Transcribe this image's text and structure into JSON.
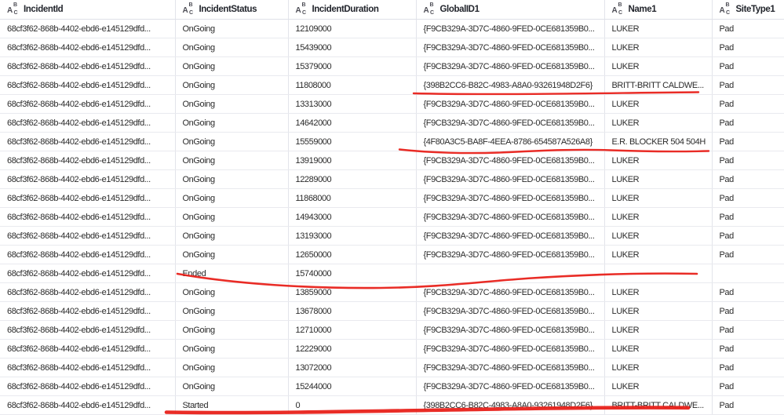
{
  "colors": {
    "annotation_red": "#e8211a",
    "grid_border": "#e2e4ea",
    "header_text": "#22252c",
    "cell_text": "#2b2b2b"
  },
  "icons": {
    "column_type": {
      "name": "text-type-icon",
      "letters": [
        "A",
        "B",
        "C"
      ]
    }
  },
  "table": {
    "columns": [
      {
        "label": "IncidentId"
      },
      {
        "label": "IncidentStatus"
      },
      {
        "label": "IncidentDuration"
      },
      {
        "label": "GlobalID1"
      },
      {
        "label": "Name1"
      },
      {
        "label": "SiteType1"
      }
    ],
    "rows": [
      [
        "68cf3f62-868b-4402-ebd6-e145129dfd...",
        "OnGoing",
        "12109000",
        "{F9CB329A-3D7C-4860-9FED-0CE681359B0...",
        "LUKER",
        "Pad"
      ],
      [
        "68cf3f62-868b-4402-ebd6-e145129dfd...",
        "OnGoing",
        "15439000",
        "{F9CB329A-3D7C-4860-9FED-0CE681359B0...",
        "LUKER",
        "Pad"
      ],
      [
        "68cf3f62-868b-4402-ebd6-e145129dfd...",
        "OnGoing",
        "15379000",
        "{F9CB329A-3D7C-4860-9FED-0CE681359B0...",
        "LUKER",
        "Pad"
      ],
      [
        "68cf3f62-868b-4402-ebd6-e145129dfd...",
        "OnGoing",
        "11808000",
        "{398B2CC6-B82C-4983-A8A0-93261948D2F6}",
        "BRITT-BRITT CALDWE...",
        "Pad"
      ],
      [
        "68cf3f62-868b-4402-ebd6-e145129dfd...",
        "OnGoing",
        "13313000",
        "{F9CB329A-3D7C-4860-9FED-0CE681359B0...",
        "LUKER",
        "Pad"
      ],
      [
        "68cf3f62-868b-4402-ebd6-e145129dfd...",
        "OnGoing",
        "14642000",
        "{F9CB329A-3D7C-4860-9FED-0CE681359B0...",
        "LUKER",
        "Pad"
      ],
      [
        "68cf3f62-868b-4402-ebd6-e145129dfd...",
        "OnGoing",
        "15559000",
        "{4F80A3C5-BA8F-4EEA-8786-654587A526A8}",
        "E.R. BLOCKER 504 504H",
        "Pad"
      ],
      [
        "68cf3f62-868b-4402-ebd6-e145129dfd...",
        "OnGoing",
        "13919000",
        "{F9CB329A-3D7C-4860-9FED-0CE681359B0...",
        "LUKER",
        "Pad"
      ],
      [
        "68cf3f62-868b-4402-ebd6-e145129dfd...",
        "OnGoing",
        "12289000",
        "{F9CB329A-3D7C-4860-9FED-0CE681359B0...",
        "LUKER",
        "Pad"
      ],
      [
        "68cf3f62-868b-4402-ebd6-e145129dfd...",
        "OnGoing",
        "11868000",
        "{F9CB329A-3D7C-4860-9FED-0CE681359B0...",
        "LUKER",
        "Pad"
      ],
      [
        "68cf3f62-868b-4402-ebd6-e145129dfd...",
        "OnGoing",
        "14943000",
        "{F9CB329A-3D7C-4860-9FED-0CE681359B0...",
        "LUKER",
        "Pad"
      ],
      [
        "68cf3f62-868b-4402-ebd6-e145129dfd...",
        "OnGoing",
        "13193000",
        "{F9CB329A-3D7C-4860-9FED-0CE681359B0...",
        "LUKER",
        "Pad"
      ],
      [
        "68cf3f62-868b-4402-ebd6-e145129dfd...",
        "OnGoing",
        "12650000",
        "{F9CB329A-3D7C-4860-9FED-0CE681359B0...",
        "LUKER",
        "Pad"
      ],
      [
        "68cf3f62-868b-4402-ebd6-e145129dfd...",
        "Ended",
        "15740000",
        "",
        "",
        ""
      ],
      [
        "68cf3f62-868b-4402-ebd6-e145129dfd...",
        "OnGoing",
        "13859000",
        "{F9CB329A-3D7C-4860-9FED-0CE681359B0...",
        "LUKER",
        "Pad"
      ],
      [
        "68cf3f62-868b-4402-ebd6-e145129dfd...",
        "OnGoing",
        "13678000",
        "{F9CB329A-3D7C-4860-9FED-0CE681359B0...",
        "LUKER",
        "Pad"
      ],
      [
        "68cf3f62-868b-4402-ebd6-e145129dfd...",
        "OnGoing",
        "12710000",
        "{F9CB329A-3D7C-4860-9FED-0CE681359B0...",
        "LUKER",
        "Pad"
      ],
      [
        "68cf3f62-868b-4402-ebd6-e145129dfd...",
        "OnGoing",
        "12229000",
        "{F9CB329A-3D7C-4860-9FED-0CE681359B0...",
        "LUKER",
        "Pad"
      ],
      [
        "68cf3f62-868b-4402-ebd6-e145129dfd...",
        "OnGoing",
        "13072000",
        "{F9CB329A-3D7C-4860-9FED-0CE681359B0...",
        "LUKER",
        "Pad"
      ],
      [
        "68cf3f62-868b-4402-ebd6-e145129dfd...",
        "OnGoing",
        "15244000",
        "{F9CB329A-3D7C-4860-9FED-0CE681359B0...",
        "LUKER",
        "Pad"
      ],
      [
        "68cf3f62-868b-4402-ebd6-e145129dfd...",
        "Started",
        "0",
        "{398B2CC6-B82C-4983-A8A0-93261948D2F6}",
        "BRITT-BRITT CALDWE...",
        "Pad"
      ]
    ]
  },
  "annotations": {
    "marks": [
      {
        "name": "red-underline-row-4"
      },
      {
        "name": "red-underline-row-7"
      },
      {
        "name": "red-strikeline-ended-row"
      },
      {
        "name": "red-underline-bottom-row"
      }
    ]
  }
}
